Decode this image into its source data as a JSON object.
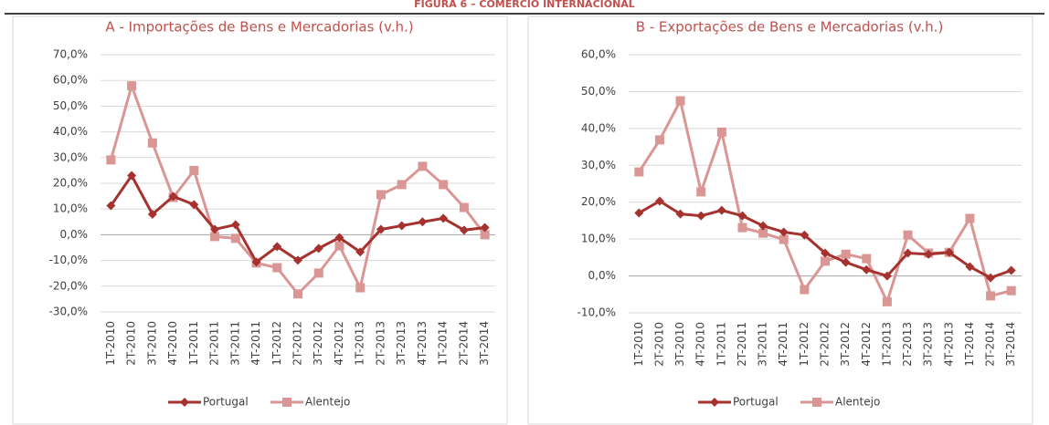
{
  "figure_title": "FIGURA 6 – COMÉRCIO INTERNACIONAL",
  "chart_data": [
    {
      "type": "line",
      "title": "A - Importações de Bens e Mercadorias (v.h.)",
      "categories": [
        "1T-2010",
        "2T-2010",
        "3T-2010",
        "4T-2010",
        "1T-2011",
        "2T-2011",
        "3T-2011",
        "4T-2011",
        "1T-2012",
        "2T-2012",
        "3T-2012",
        "4T-2012",
        "1T-2013",
        "2T-2013",
        "3T-2013",
        "4T-2013",
        "1T-2014",
        "2T-2014",
        "3T-2014"
      ],
      "series": [
        {
          "name": "Portugal",
          "color": "#a5322e",
          "marker": "diamond",
          "values": [
            11.3,
            23,
            8,
            14.9,
            11.7,
            2.1,
            3.9,
            -10.6,
            -4.6,
            -9.9,
            -5.3,
            -1.1,
            -6.7,
            2.1,
            3.5,
            5,
            6.4,
            1.8,
            2.8
          ]
        },
        {
          "name": "Alentejo",
          "color": "#d99694",
          "marker": "square",
          "values": [
            29.1,
            57.9,
            35.7,
            14.5,
            25,
            -0.7,
            -1.4,
            -11,
            -12.8,
            -23,
            -14.9,
            -4.3,
            -20.6,
            15.6,
            19.5,
            26.6,
            19.5,
            10.6,
            0.0
          ]
        }
      ],
      "ylim": [
        -30,
        70
      ],
      "yticks": [
        {
          "value": -30,
          "label": "-30,0%"
        },
        {
          "value": -20,
          "label": "-20,0%"
        },
        {
          "value": -10,
          "label": "-10,0%"
        },
        {
          "value": 0,
          "label": "0,0%"
        },
        {
          "value": 10,
          "label": "10,0%"
        },
        {
          "value": 20,
          "label": "20,0%"
        },
        {
          "value": 30,
          "label": "30,0%"
        },
        {
          "value": 40,
          "label": "40,0%"
        },
        {
          "value": 50,
          "label": "50,0%"
        },
        {
          "value": 60,
          "label": "60,0%"
        },
        {
          "value": 70,
          "label": "70,0%"
        }
      ],
      "grid": true,
      "legend": "bottom"
    },
    {
      "type": "line",
      "title": "B - Exportações de Bens e Mercadorias (v.h.)",
      "categories": [
        "1T-2010",
        "2T-2010",
        "3T-2010",
        "4T-2010",
        "1T-2011",
        "2T-2011",
        "3T-2011",
        "4T-2011",
        "1T-2012",
        "2T-2012",
        "3T-2012",
        "4T-2012",
        "1T-2013",
        "2T-2013",
        "3T-2013",
        "4T-2013",
        "1T-2014",
        "2T-2014",
        "3T-2014"
      ],
      "series": [
        {
          "name": "Portugal",
          "color": "#a5322e",
          "marker": "diamond",
          "values": [
            17.1,
            20.3,
            16.8,
            16.3,
            17.8,
            16.3,
            13.6,
            11.9,
            11.1,
            6.2,
            3.7,
            1.7,
            0,
            6.2,
            5.9,
            6.4,
            2.5,
            -0.5,
            1.5
          ]
        },
        {
          "name": "Alentejo",
          "color": "#d99694",
          "marker": "square",
          "values": [
            28.2,
            36.9,
            47.5,
            22.8,
            39,
            13.1,
            11.6,
            9.9,
            -3.7,
            4,
            5.9,
            4.7,
            -7,
            11.1,
            6.2,
            6.4,
            15.6,
            -5.4,
            -4
          ]
        }
      ],
      "ylim": [
        -10,
        60
      ],
      "yticks": [
        {
          "value": -10,
          "label": "-10,0%"
        },
        {
          "value": 0,
          "label": "0,0%"
        },
        {
          "value": 10,
          "label": "10,0%"
        },
        {
          "value": 20,
          "label": "20,0%"
        },
        {
          "value": 30,
          "label": "30,0%"
        },
        {
          "value": 40,
          "label": "40,0%"
        },
        {
          "value": 50,
          "label": "50,0%"
        },
        {
          "value": 60,
          "label": "60,0%"
        }
      ],
      "grid": true,
      "legend": "bottom"
    }
  ]
}
